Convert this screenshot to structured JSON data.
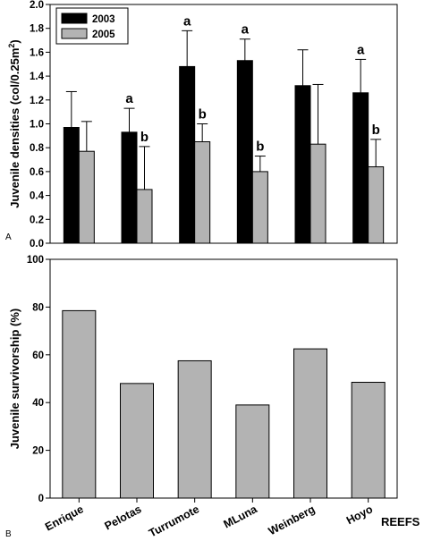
{
  "colors": {
    "series_2003": "#000000",
    "series_2005": "#b3b3b3",
    "axis": "#000000"
  },
  "chart_data": [
    {
      "panel_label": "A",
      "type": "bar",
      "ylabel": "Juvenile densities (col/0.25m",
      "ylabel_sup": "2",
      "ylabel_close": ")",
      "ylim": [
        0,
        2.0
      ],
      "yticks": [
        "0.0",
        "0.2",
        "0.4",
        "0.6",
        "0.8",
        "1.0",
        "1.2",
        "1.4",
        "1.6",
        "1.8",
        "2.0"
      ],
      "categories": [
        "Enrique",
        "Pelotas",
        "Turrumote",
        "MLuna",
        "Weinberg",
        "Hoyo"
      ],
      "legend_position": "top-left",
      "series": [
        {
          "name": "2003",
          "values": [
            0.97,
            0.93,
            1.48,
            1.53,
            1.32,
            1.26
          ],
          "error_upper": [
            1.27,
            1.13,
            1.78,
            1.71,
            1.62,
            1.54
          ],
          "annotations": [
            "",
            "a",
            "a",
            "a",
            "",
            "a"
          ]
        },
        {
          "name": "2005",
          "values": [
            0.77,
            0.45,
            0.85,
            0.6,
            0.83,
            0.64
          ],
          "error_upper": [
            1.02,
            0.81,
            1.0,
            0.73,
            1.33,
            0.87
          ],
          "annotations": [
            "",
            "b",
            "b",
            "b",
            "",
            "b"
          ]
        }
      ]
    },
    {
      "panel_label": "B",
      "type": "bar",
      "ylabel": "Juvenile survivorship (%)",
      "xlabel": "REEFS",
      "ylim": [
        0,
        100
      ],
      "yticks": [
        "0",
        "20",
        "40",
        "60",
        "80",
        "100"
      ],
      "categories": [
        "Enrique",
        "Pelotas",
        "Turrumote",
        "MLuna",
        "Weinberg",
        "Hoyo"
      ],
      "values": [
        78.5,
        48,
        57.5,
        39,
        62.5,
        48.5
      ]
    }
  ]
}
